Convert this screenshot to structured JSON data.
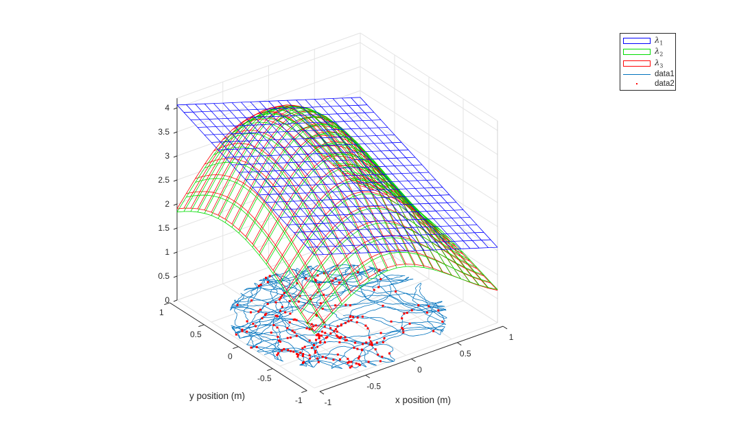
{
  "chart_data": {
    "type": "surface3d",
    "xlabel": "x position (m)",
    "ylabel": "y position (m)",
    "zlabel": "",
    "xlim": [
      -1,
      1
    ],
    "ylim": [
      -1,
      1
    ],
    "zlim": [
      0,
      4.2
    ],
    "xticks": [
      -1,
      -0.5,
      0,
      0.5,
      1
    ],
    "yticks": [
      -1,
      -0.5,
      0,
      0.5,
      1
    ],
    "zticks": [
      0,
      0.5,
      1,
      1.5,
      2,
      2.5,
      3,
      3.5,
      4
    ],
    "xtick_labels": [
      "-1",
      "-0.5",
      "0",
      "0.5",
      "1"
    ],
    "ytick_labels": [
      "-1",
      "-0.5",
      "0",
      "0.5",
      "1"
    ],
    "ztick_labels": [
      "0",
      "0.5",
      "1",
      "1.5",
      "2",
      "2.5",
      "3",
      "3.5",
      "4"
    ],
    "grid": true,
    "legend_position": "top-right",
    "mesh_points_per_side": 21,
    "series": [
      {
        "name": "λ1",
        "label_base": "λ",
        "label_sub": "1",
        "kind": "mesh",
        "color": "#0000ff",
        "model": "plane",
        "params": {
          "a": 2.815,
          "bx": -0.6,
          "cy": 0.645
        }
      },
      {
        "name": "λ2",
        "label_base": "λ",
        "label_sub": "2",
        "kind": "mesh",
        "color": "#00dd00",
        "model": "gaussian",
        "params": {
          "base": 0.22,
          "amp": 3.75,
          "x0": -0.18,
          "y0": 0.3,
          "sx": 1.1,
          "sy": 2.1
        }
      },
      {
        "name": "λ3",
        "label_base": "λ",
        "label_sub": "3",
        "kind": "mesh",
        "color": "#ff0000",
        "model": "gaussian",
        "params": {
          "base": 0.2,
          "amp": 3.8,
          "x0": -0.2,
          "y0": 0.3,
          "sx": 1.1,
          "sy": 2.2
        }
      },
      {
        "name": "data1",
        "kind": "line",
        "color": "#0072BD",
        "model": "random-walk",
        "params": {
          "seed": 7,
          "n": 2600,
          "cx": -0.05,
          "cy": -0.08,
          "radius": 0.95,
          "step": 0.035
        }
      },
      {
        "name": "data2",
        "kind": "points",
        "color": "#ff0000",
        "model": "spikes-on-walk",
        "params": {
          "seed": 11,
          "fx": -0.25,
          "fy": -0.35,
          "field_width": 0.35,
          "peak_rate": 0.55,
          "base_rate": 0.06
        }
      }
    ]
  }
}
